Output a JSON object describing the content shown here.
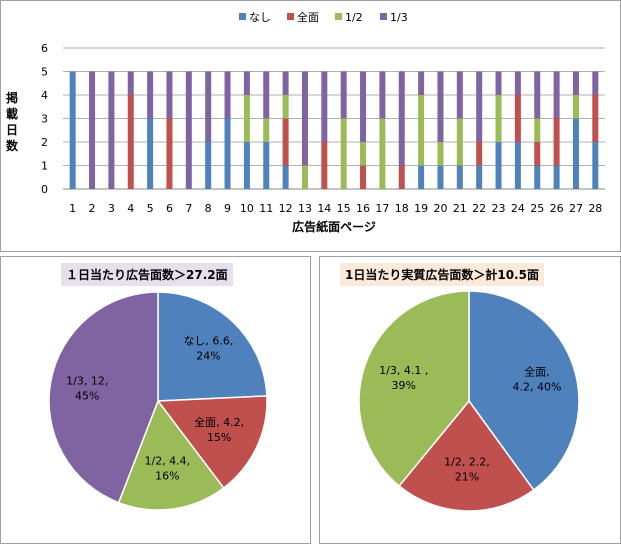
{
  "chart_data": [
    {
      "type": "bar",
      "stacked": true,
      "legend": [
        "なし",
        "全面",
        "1/2",
        "1/3"
      ],
      "legend_position": "top",
      "colors": [
        "#4f81bd",
        "#c0504d",
        "#9bbb59",
        "#8064a2"
      ],
      "xlabel": "広告紙面ページ",
      "ylabel": "掲載日数",
      "ylim": [
        0,
        6
      ],
      "yticks": [
        "0",
        "1",
        "2",
        "3",
        "4",
        "5",
        "6"
      ],
      "grid": true,
      "categories": [
        "1",
        "2",
        "3",
        "4",
        "5",
        "6",
        "7",
        "8",
        "9",
        "10",
        "11",
        "12",
        "13",
        "14",
        "15",
        "16",
        "17",
        "18",
        "19",
        "20",
        "21",
        "22",
        "23",
        "24",
        "25",
        "26",
        "27",
        "28"
      ],
      "series": [
        {
          "name": "なし",
          "values": [
            5,
            0,
            0,
            0,
            3,
            0,
            0,
            2,
            3,
            2,
            2,
            1,
            0,
            0,
            0,
            0,
            0,
            0,
            1,
            1,
            1,
            1,
            2,
            2,
            1,
            1,
            3,
            2
          ]
        },
        {
          "name": "全面",
          "values": [
            0,
            0,
            0,
            4,
            0,
            3,
            0,
            0,
            0,
            0,
            0,
            2,
            0,
            2,
            0,
            1,
            0,
            1,
            0,
            0,
            0,
            1,
            0,
            2,
            1,
            2,
            0,
            2
          ]
        },
        {
          "name": "1/2",
          "values": [
            0,
            0,
            0,
            0,
            0,
            0,
            0,
            0,
            0,
            2,
            1,
            1,
            1,
            0,
            3,
            1,
            3,
            0,
            3,
            1,
            2,
            0,
            2,
            0,
            1,
            0,
            1,
            0
          ]
        },
        {
          "name": "1/3",
          "values": [
            0,
            5,
            5,
            1,
            2,
            2,
            5,
            3,
            2,
            1,
            2,
            1,
            4,
            3,
            2,
            3,
            2,
            4,
            1,
            3,
            2,
            3,
            1,
            1,
            2,
            2,
            1,
            1
          ]
        }
      ]
    },
    {
      "type": "pie",
      "title": "１日当たり広告面数＞27.2面",
      "labels": [
        "なし",
        "全面",
        "1/2",
        "1/3"
      ],
      "values": [
        6.6,
        4.2,
        4.4,
        12
      ],
      "percents": [
        24,
        15,
        16,
        45
      ],
      "colors": [
        "#4f81bd",
        "#c0504d",
        "#9bbb59",
        "#8064a2"
      ],
      "data_labels": [
        [
          "なし, 6.6,",
          "24%"
        ],
        [
          "全面, 4.2,",
          "15%"
        ],
        [
          "1/2, 4.4,",
          "16%"
        ],
        [
          "1/3, 12,",
          "45%"
        ]
      ]
    },
    {
      "type": "pie",
      "title": "1日当たり実質広告面数＞計10.5面",
      "labels": [
        "全面",
        "1/2",
        "1/3"
      ],
      "values": [
        4.2,
        2.2,
        4.1
      ],
      "percents": [
        40,
        21,
        39
      ],
      "colors": [
        "#4f81bd",
        "#c0504d",
        "#9bbb59"
      ],
      "data_labels": [
        [
          "全面,",
          "4.2, 40%"
        ],
        [
          "1/2, 2.2,",
          "21%"
        ],
        [
          "1/3, 4.1 ,",
          "39%"
        ]
      ]
    }
  ]
}
